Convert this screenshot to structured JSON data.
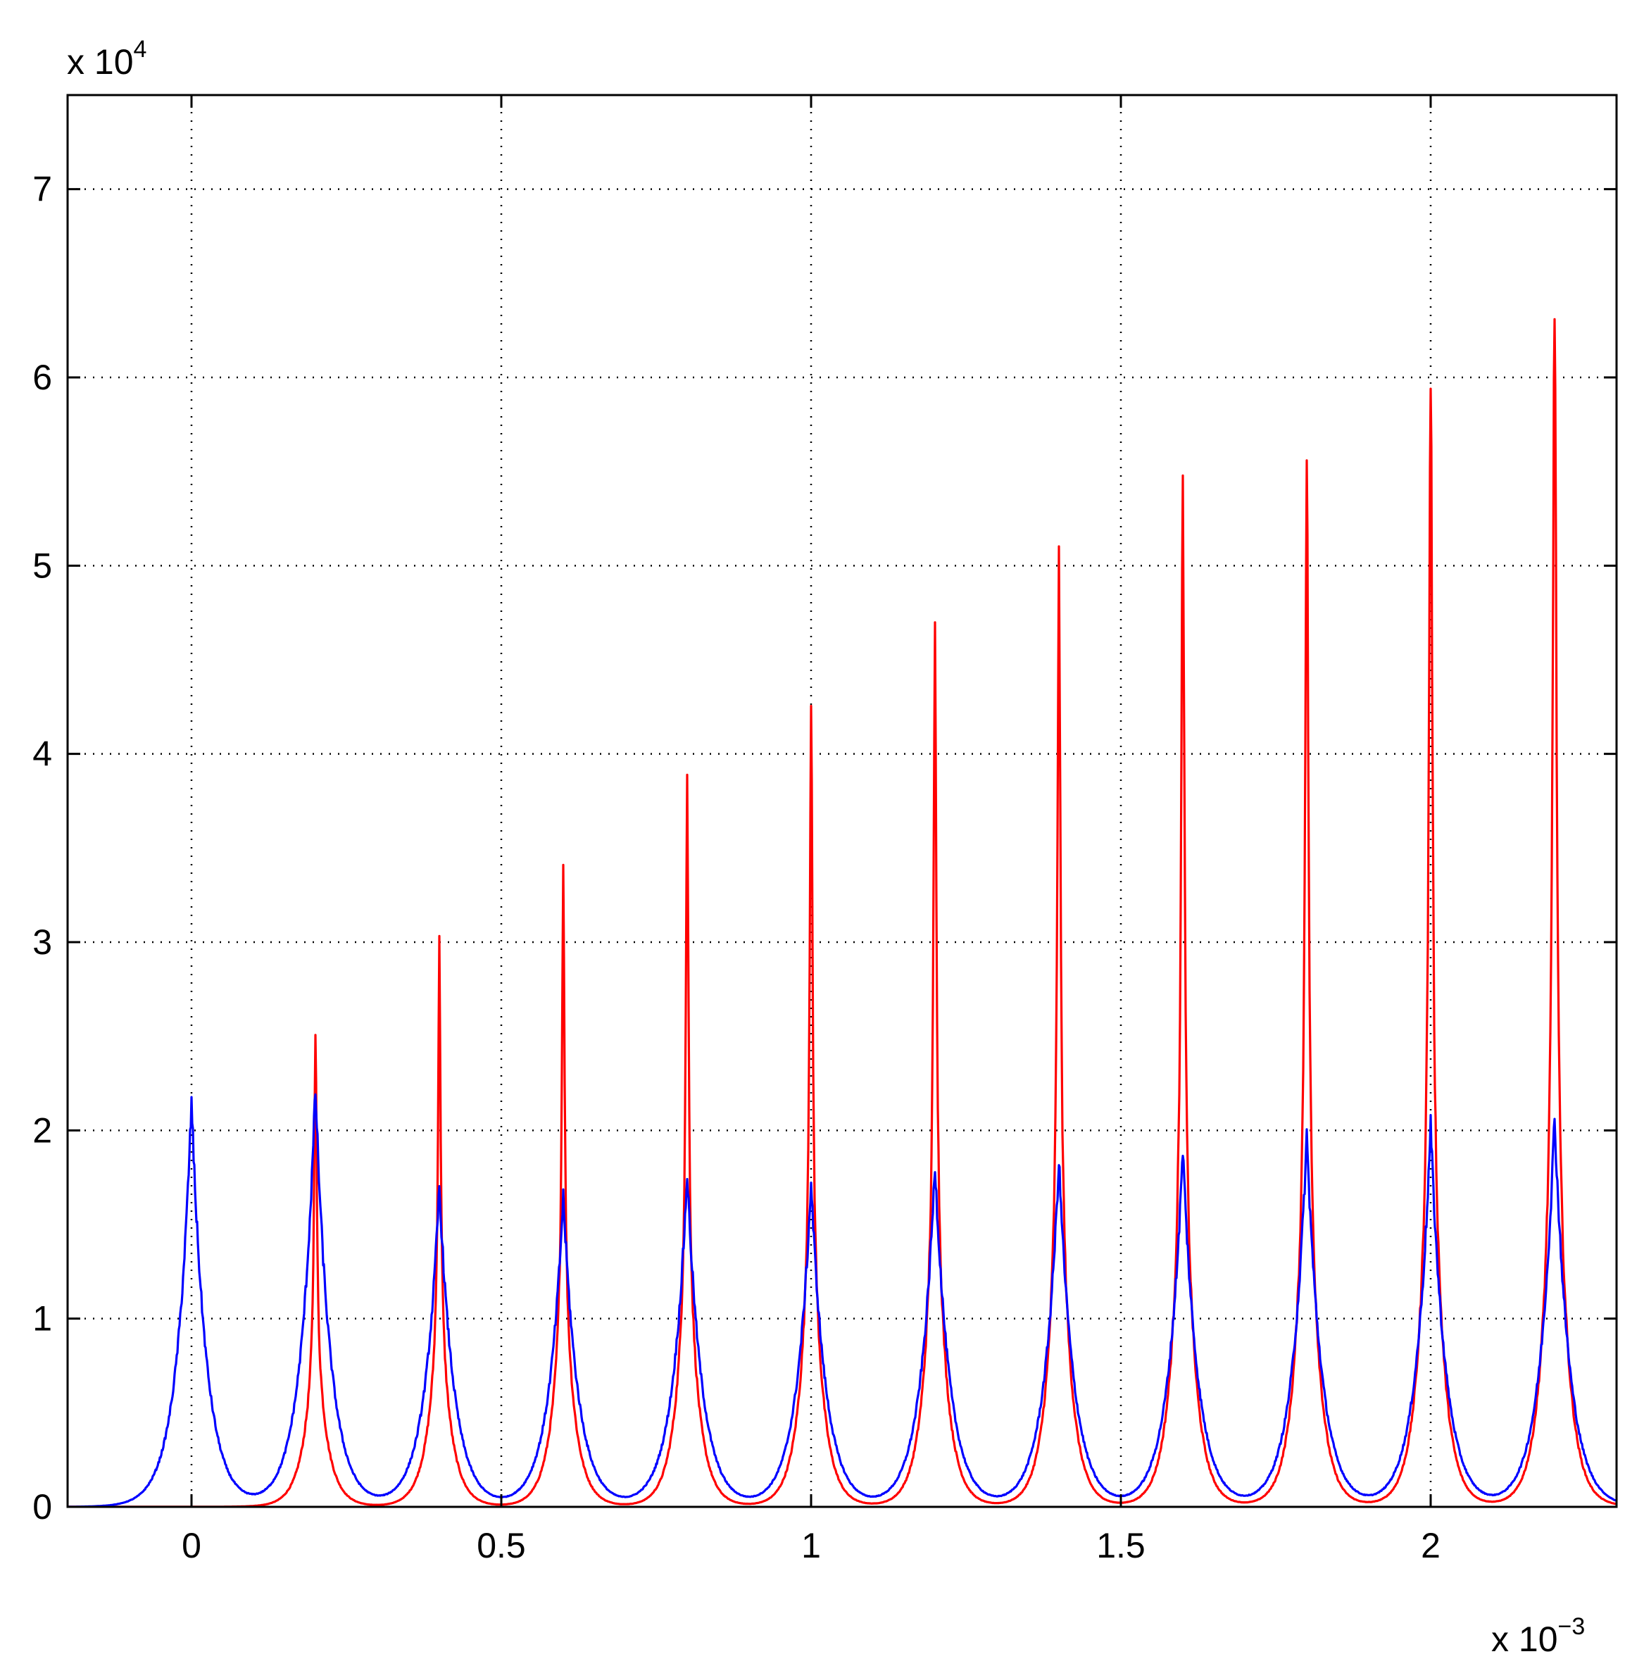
{
  "chart_data": {
    "type": "line",
    "title": "",
    "xlabel": "",
    "ylabel": "",
    "xlim": [
      -0.0002,
      0.0023
    ],
    "ylim": [
      0,
      75000
    ],
    "grid": true,
    "grid_style": "dotted",
    "legend": "none",
    "x_multiplier": {
      "base": "x 10",
      "exponent": "−3"
    },
    "y_multiplier": {
      "base": "x 10",
      "exponent": "4"
    },
    "x_ticks": [
      {
        "value": 0,
        "label": "0"
      },
      {
        "value": 0.0005,
        "label": "0.5"
      },
      {
        "value": 0.001,
        "label": "1"
      },
      {
        "value": 0.0015,
        "label": "1.5"
      },
      {
        "value": 0.002,
        "label": "2"
      }
    ],
    "y_ticks": [
      {
        "value": 0,
        "label": "0"
      },
      {
        "value": 10000,
        "label": "1"
      },
      {
        "value": 20000,
        "label": "2"
      },
      {
        "value": 30000,
        "label": "3"
      },
      {
        "value": 40000,
        "label": "4"
      },
      {
        "value": 50000,
        "label": "5"
      },
      {
        "value": 60000,
        "label": "6"
      },
      {
        "value": 70000,
        "label": "7"
      }
    ],
    "series": [
      {
        "color": "#ff0000",
        "peaks": [
          {
            "x": 0.0002,
            "y": 25800
          },
          {
            "x": 0.0004,
            "y": 29700
          },
          {
            "x": 0.0006,
            "y": 34000
          },
          {
            "x": 0.0008,
            "y": 38300
          },
          {
            "x": 0.001,
            "y": 42300
          },
          {
            "x": 0.0012,
            "y": 46200
          },
          {
            "x": 0.0014,
            "y": 49800
          },
          {
            "x": 0.0016,
            "y": 53900
          },
          {
            "x": 0.0018,
            "y": 55600
          },
          {
            "x": 0.002,
            "y": 60400
          },
          {
            "x": 0.0022,
            "y": 64800
          }
        ]
      },
      {
        "color": "#0000ff",
        "peaks": [
          {
            "x": 0.0,
            "y": 21500
          },
          {
            "x": 0.0002,
            "y": 22200
          },
          {
            "x": 0.0004,
            "y": 17000
          },
          {
            "x": 0.0006,
            "y": 16500
          },
          {
            "x": 0.0008,
            "y": 17700
          },
          {
            "x": 0.001,
            "y": 17200
          },
          {
            "x": 0.0012,
            "y": 18200
          },
          {
            "x": 0.0014,
            "y": 18400
          },
          {
            "x": 0.0016,
            "y": 19000
          },
          {
            "x": 0.0018,
            "y": 19700
          },
          {
            "x": 0.002,
            "y": 20200
          },
          {
            "x": 0.0022,
            "y": 20700
          }
        ]
      }
    ]
  }
}
